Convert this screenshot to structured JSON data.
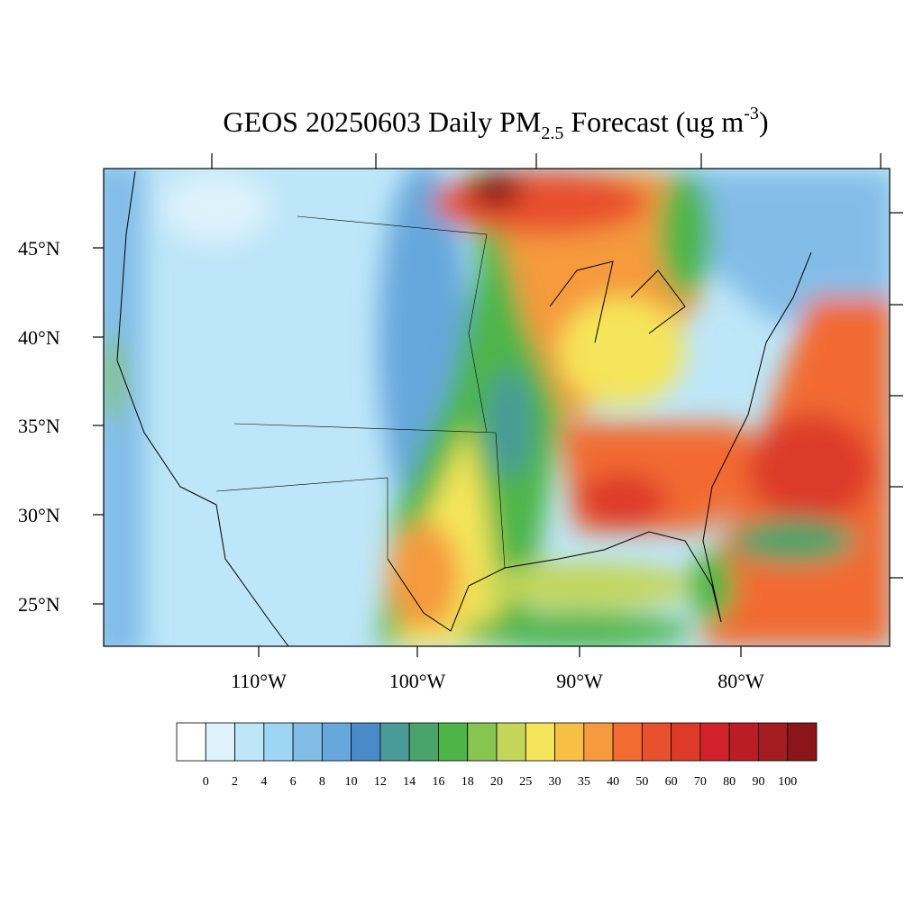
{
  "header": {
    "title_parts": [
      "GEOS 20250603 Daily PM",
      "2.5",
      " Forecast (ug m",
      "-3",
      ")"
    ]
  },
  "map": {
    "lat_labels": [
      "45°N",
      "40°N",
      "35°N",
      "30°N",
      "25°N"
    ],
    "lon_labels": [
      "110°W",
      "100°W",
      "90°W",
      "80°W"
    ]
  },
  "colorbar": {
    "labels": [
      0,
      2,
      4,
      6,
      8,
      10,
      12,
      14,
      16,
      18,
      20,
      25,
      30,
      35,
      40,
      50,
      60,
      70,
      80,
      90,
      100
    ],
    "colors": [
      "#ffffff",
      "#ddf2fb",
      "#bde6f8",
      "#9dd6f5",
      "#82bde8",
      "#66a7dc",
      "#4a8ac8",
      "#4a9a9a",
      "#4aa36b",
      "#4db548",
      "#86c550",
      "#c3d65a",
      "#f5e55a",
      "#f7c045",
      "#f59a3e",
      "#f26b30",
      "#e8502e",
      "#dd3a2a",
      "#d12229",
      "#ba1d24",
      "#a41b20",
      "#8c1518"
    ]
  }
}
